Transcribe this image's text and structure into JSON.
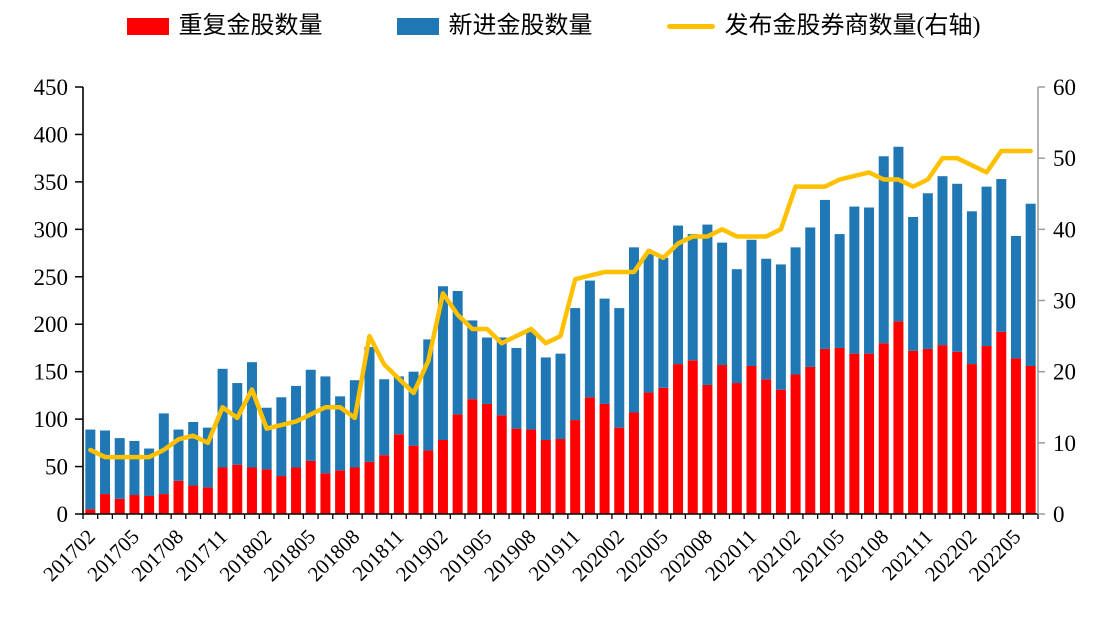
{
  "legend": {
    "items": [
      {
        "label": "重复金股数量",
        "color": "#FF0000",
        "swatch": "box"
      },
      {
        "label": "新进金股数量",
        "color": "#1F77B4",
        "swatch": "box"
      },
      {
        "label": "发布金股券商数量(右轴)",
        "color": "#FFC000",
        "swatch": "line"
      }
    ]
  },
  "chart_data": {
    "type": "bar",
    "subtype": "stacked-bars-with-right-axis-line",
    "categories": [
      "201702",
      "201703",
      "201704",
      "201705",
      "201706",
      "201707",
      "201708",
      "201709",
      "201710",
      "201711",
      "201712",
      "201801",
      "201802",
      "201803",
      "201804",
      "201805",
      "201806",
      "201807",
      "201808",
      "201809",
      "201810",
      "201811",
      "201812",
      "201901",
      "201902",
      "201903",
      "201904",
      "201905",
      "201906",
      "201907",
      "201908",
      "201909",
      "201910",
      "201911",
      "201912",
      "202001",
      "202002",
      "202003",
      "202004",
      "202005",
      "202006",
      "202007",
      "202008",
      "202009",
      "202010",
      "202011",
      "202012",
      "202101",
      "202102",
      "202103",
      "202104",
      "202105",
      "202106",
      "202107",
      "202108",
      "202109",
      "202110",
      "202111",
      "202112",
      "202201",
      "202202",
      "202203",
      "202204",
      "202205",
      "202206"
    ],
    "series": [
      {
        "name": "重复金股数量",
        "type": "bar",
        "stack": "total",
        "axis": "left",
        "color": "#FF0000",
        "values": [
          5,
          21,
          16,
          20,
          19,
          21,
          35,
          30,
          28,
          49,
          52,
          49,
          47,
          40,
          49,
          56,
          43,
          46,
          49,
          55,
          62,
          84,
          72,
          67,
          78,
          105,
          121,
          116,
          104,
          90,
          89,
          78,
          79,
          99,
          123,
          116,
          91,
          107,
          128,
          133,
          158,
          162,
          136,
          157,
          138,
          156,
          142,
          131,
          147,
          155,
          174,
          175,
          169,
          169,
          180,
          203,
          172,
          174,
          178,
          171,
          158,
          177,
          192,
          164,
          156
        ]
      },
      {
        "name": "新进金股数量",
        "type": "bar",
        "stack": "total",
        "axis": "left",
        "color": "#1F77B4",
        "values": [
          84,
          67,
          64,
          57,
          50,
          85,
          54,
          67,
          63,
          104,
          86,
          111,
          65,
          83,
          86,
          96,
          102,
          78,
          92,
          121,
          80,
          61,
          78,
          117,
          162,
          130,
          83,
          70,
          82,
          85,
          104,
          87,
          90,
          118,
          123,
          111,
          126,
          174,
          146,
          137,
          146,
          133,
          169,
          129,
          120,
          133,
          127,
          132,
          134,
          147,
          157,
          120,
          155,
          154,
          197,
          184,
          141,
          164,
          178,
          177,
          161,
          168,
          161,
          129,
          171
        ]
      },
      {
        "name": "发布金股券商数量(右轴)",
        "type": "line",
        "axis": "right",
        "color": "#FFC000",
        "values": [
          9,
          8,
          8,
          8,
          8,
          9,
          10.5,
          11,
          10,
          15,
          13.5,
          17.5,
          12,
          12.5,
          13,
          14,
          15,
          15,
          13.5,
          25,
          21,
          19,
          17,
          21.5,
          31,
          28,
          26,
          26,
          24,
          25,
          26,
          24,
          25,
          33,
          33.5,
          34,
          34,
          34,
          37,
          36,
          38,
          39,
          39,
          40,
          39,
          39,
          39,
          40,
          46,
          46,
          46,
          47,
          47.5,
          48,
          47,
          47,
          46,
          47,
          50,
          50,
          49,
          48,
          51,
          51,
          51
        ]
      }
    ],
    "left_axis": {
      "min": 0,
      "max": 450,
      "step": 50
    },
    "right_axis": {
      "min": 0,
      "max": 60,
      "step": 10
    },
    "x_label_every": 3,
    "grid": false,
    "legend_position": "top",
    "axis_color": "#000000",
    "right_axis_color": "#9c9c9c"
  }
}
